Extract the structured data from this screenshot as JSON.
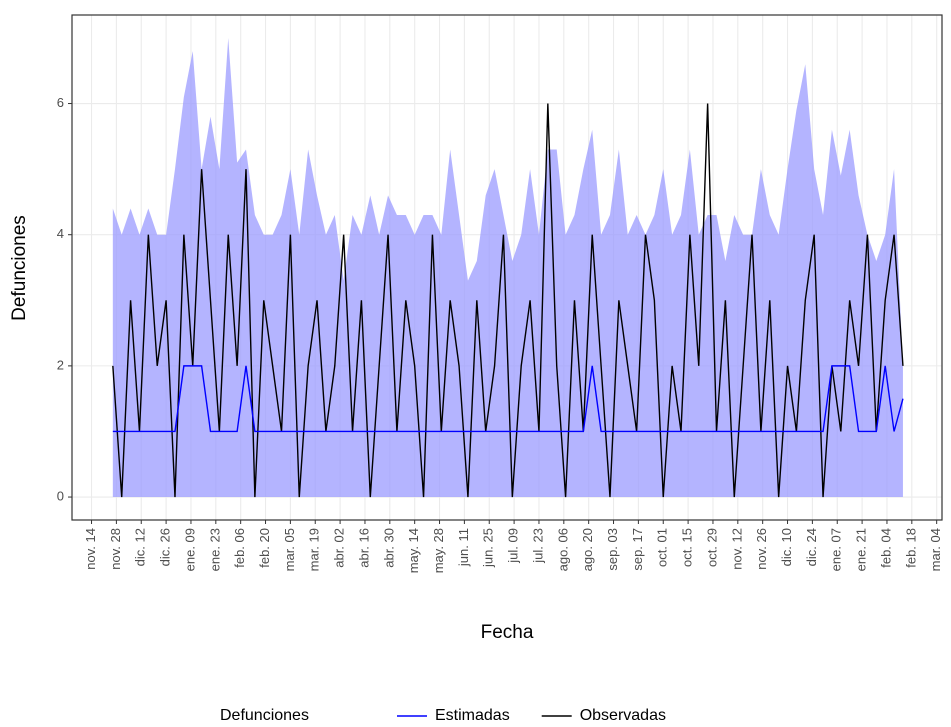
{
  "chart_data": {
    "type": "line",
    "x_label": "Fecha",
    "y_label": "Defunciones",
    "legend_title": "Defunciones",
    "legend_position": "bottom",
    "grid": true,
    "xlim": [
      -11,
      479
    ],
    "ylim": [
      -0.35,
      7.35
    ],
    "yticks": [
      0,
      2,
      4,
      6
    ],
    "xticks": [
      {
        "value": 0,
        "label": "nov. 14"
      },
      {
        "value": 14,
        "label": "nov. 28"
      },
      {
        "value": 28,
        "label": "dic. 12"
      },
      {
        "value": 42,
        "label": "dic. 26"
      },
      {
        "value": 56,
        "label": "ene. 09"
      },
      {
        "value": 70,
        "label": "ene. 23"
      },
      {
        "value": 84,
        "label": "feb. 06"
      },
      {
        "value": 98,
        "label": "feb. 20"
      },
      {
        "value": 112,
        "label": "mar. 05"
      },
      {
        "value": 126,
        "label": "mar. 19"
      },
      {
        "value": 140,
        "label": "abr. 02"
      },
      {
        "value": 154,
        "label": "abr. 16"
      },
      {
        "value": 168,
        "label": "abr. 30"
      },
      {
        "value": 182,
        "label": "may. 14"
      },
      {
        "value": 196,
        "label": "may. 28"
      },
      {
        "value": 210,
        "label": "jun. 11"
      },
      {
        "value": 224,
        "label": "jun. 25"
      },
      {
        "value": 238,
        "label": "jul. 09"
      },
      {
        "value": 252,
        "label": "jul. 23"
      },
      {
        "value": 266,
        "label": "ago. 06"
      },
      {
        "value": 280,
        "label": "ago. 20"
      },
      {
        "value": 294,
        "label": "sep. 03"
      },
      {
        "value": 308,
        "label": "sep. 17"
      },
      {
        "value": 322,
        "label": "oct. 01"
      },
      {
        "value": 336,
        "label": "oct. 15"
      },
      {
        "value": 350,
        "label": "oct. 29"
      },
      {
        "value": 364,
        "label": "nov. 12"
      },
      {
        "value": 378,
        "label": "nov. 26"
      },
      {
        "value": 392,
        "label": "dic. 10"
      },
      {
        "value": 406,
        "label": "dic. 24"
      },
      {
        "value": 420,
        "label": "ene. 07"
      },
      {
        "value": 434,
        "label": "ene. 21"
      },
      {
        "value": 448,
        "label": "feb. 04"
      },
      {
        "value": 462,
        "label": "feb. 18"
      },
      {
        "value": 476,
        "label": "mar. 04"
      }
    ],
    "x": [
      12,
      17,
      22,
      27,
      32,
      37,
      42,
      47,
      52,
      57,
      62,
      67,
      72,
      77,
      82,
      87,
      92,
      97,
      102,
      107,
      112,
      117,
      122,
      127,
      132,
      137,
      142,
      147,
      152,
      157,
      162,
      167,
      172,
      177,
      182,
      187,
      192,
      197,
      202,
      207,
      212,
      217,
      222,
      227,
      232,
      237,
      242,
      247,
      252,
      257,
      262,
      267,
      272,
      277,
      282,
      287,
      292,
      297,
      302,
      307,
      312,
      317,
      322,
      327,
      332,
      337,
      342,
      347,
      352,
      357,
      362,
      367,
      372,
      377,
      382,
      387,
      392,
      397,
      402,
      407,
      412,
      417,
      422,
      427,
      432,
      437,
      442,
      447,
      452,
      457
    ],
    "band": {
      "color": "#9b9bff",
      "upper": [
        4.4,
        4.0,
        4.4,
        4.0,
        4.4,
        4.0,
        4.0,
        5.0,
        6.1,
        6.8,
        5.0,
        5.8,
        5.0,
        7.0,
        5.1,
        5.3,
        4.3,
        4.0,
        4.0,
        4.3,
        5.0,
        4.0,
        5.3,
        4.6,
        4.0,
        4.3,
        3.3,
        4.3,
        4.0,
        4.6,
        4.0,
        4.6,
        4.3,
        4.3,
        4.0,
        4.3,
        4.3,
        4.0,
        5.3,
        4.3,
        3.3,
        3.6,
        4.6,
        5.0,
        4.3,
        3.6,
        4.0,
        5.0,
        4.0,
        5.3,
        5.3,
        4.0,
        4.3,
        5.0,
        5.6,
        4.0,
        4.3,
        5.3,
        4.0,
        4.3,
        4.0,
        4.3,
        5.0,
        4.0,
        4.3,
        5.3,
        4.0,
        4.3,
        4.3,
        3.6,
        4.3,
        4.0,
        4.0,
        5.0,
        4.3,
        4.0,
        5.0,
        5.9,
        6.6,
        5.0,
        4.3,
        5.6,
        4.9,
        5.6,
        4.6,
        4.0,
        3.6,
        4.0,
        5.0,
        2.0
      ]
    },
    "series": [
      {
        "name": "Estimadas",
        "color": "#0000ff",
        "values": [
          1,
          1,
          1,
          1,
          1,
          1,
          1,
          1,
          2,
          2,
          2,
          1,
          1,
          1,
          1,
          2,
          1,
          1,
          1,
          1,
          1,
          1,
          1,
          1,
          1,
          1,
          1,
          1,
          1,
          1,
          1,
          1,
          1,
          1,
          1,
          1,
          1,
          1,
          1,
          1,
          1,
          1,
          1,
          1,
          1,
          1,
          1,
          1,
          1,
          1,
          1,
          1,
          1,
          1,
          2,
          1,
          1,
          1,
          1,
          1,
          1,
          1,
          1,
          1,
          1,
          1,
          1,
          1,
          1,
          1,
          1,
          1,
          1,
          1,
          1,
          1,
          1,
          1,
          1,
          1,
          1,
          2,
          2,
          2,
          1,
          1,
          1,
          2,
          1,
          1.5
        ]
      },
      {
        "name": "Observadas",
        "color": "#000000",
        "values": [
          2,
          0,
          3,
          1,
          4,
          2,
          3,
          0,
          4,
          2,
          5,
          3,
          1,
          4,
          2,
          5,
          0,
          3,
          2,
          1,
          4,
          0,
          2,
          3,
          1,
          2,
          4,
          1,
          3,
          0,
          2,
          4,
          1,
          3,
          2,
          0,
          4,
          1,
          3,
          2,
          0,
          3,
          1,
          2,
          4,
          0,
          2,
          3,
          1,
          6,
          2,
          0,
          3,
          1,
          4,
          2,
          0,
          3,
          2,
          1,
          4,
          3,
          0,
          2,
          1,
          4,
          2,
          6,
          1,
          3,
          0,
          2,
          4,
          1,
          3,
          0,
          2,
          1,
          3,
          4,
          0,
          2,
          1,
          3,
          2,
          4,
          1,
          3,
          4,
          2
        ]
      }
    ]
  }
}
